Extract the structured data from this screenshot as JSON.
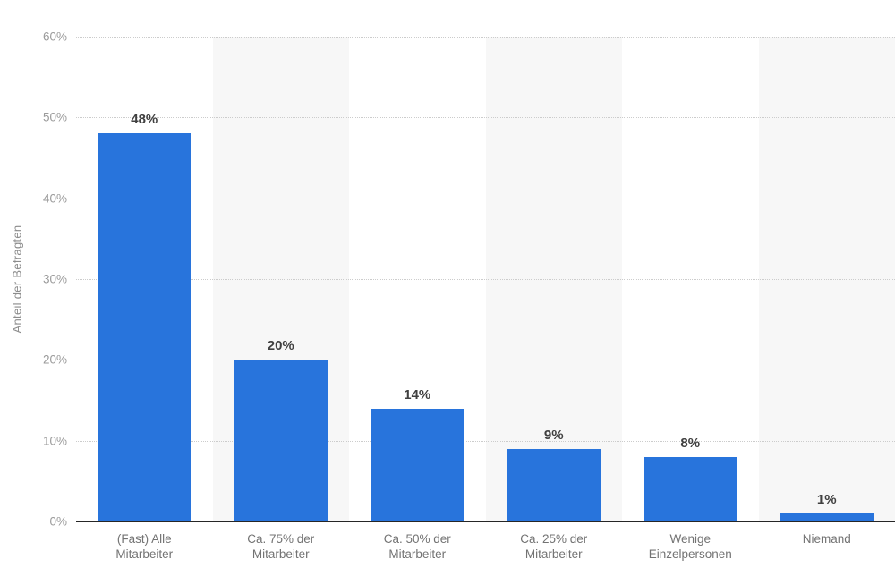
{
  "chart_data": {
    "type": "bar",
    "title": "",
    "xlabel": "",
    "ylabel": "Anteil der Befragten",
    "categories": [
      "(Fast) Alle\nMitarbeiter",
      "Ca. 75% der\nMitarbeiter",
      "Ca. 50% der\nMitarbeiter",
      "Ca. 25% der\nMitarbeiter",
      "Wenige\nEinzelpersonen",
      "Niemand"
    ],
    "values": [
      48,
      20,
      14,
      9,
      8,
      1
    ],
    "value_labels": [
      "48%",
      "20%",
      "14%",
      "9%",
      "8%",
      "1%"
    ],
    "ylim": [
      0,
      60
    ],
    "yticks": [
      0,
      10,
      20,
      30,
      40,
      50,
      60
    ],
    "ytick_suffix": "%",
    "grid": "horizontal-dotted",
    "legend": "none",
    "band_pattern": "alternating columns white / light-gray",
    "colors": {
      "bar": "#2874dc",
      "band": "#f7f7f7",
      "gridline": "#cccccc",
      "axis_line": "#262626",
      "tick_label": "#9a9a9a",
      "category_label": "#737373",
      "value_label": "#404040",
      "axis_title": "#8c8c8c",
      "background": "#ffffff"
    }
  }
}
